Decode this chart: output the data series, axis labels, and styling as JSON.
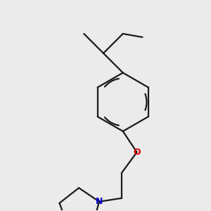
{
  "background_color": "#ebebeb",
  "bond_color": "#1a1a1a",
  "oxygen_color": "#dd0000",
  "nitrogen_color": "#0000cc",
  "line_width": 1.6,
  "figsize": [
    3.0,
    3.0
  ],
  "dpi": 100,
  "xlim": [
    0,
    300
  ],
  "ylim": [
    0,
    300
  ]
}
